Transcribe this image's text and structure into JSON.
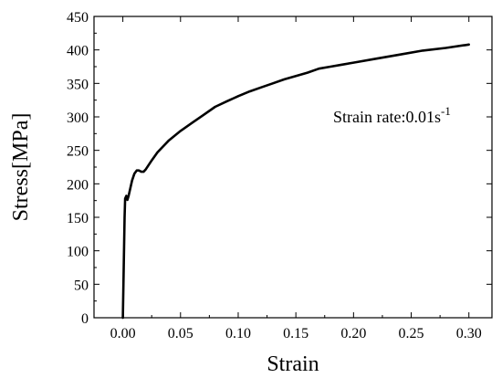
{
  "chart_data": {
    "type": "line",
    "title": "",
    "xlabel": "Strain",
    "ylabel": "Stress[MPa]",
    "xlim": [
      -0.025,
      0.32
    ],
    "ylim": [
      0,
      450
    ],
    "xticks": [
      0.0,
      0.05,
      0.1,
      0.15,
      0.2,
      0.25,
      0.3
    ],
    "xtick_labels": [
      "0.00",
      "0.05",
      "0.10",
      "0.15",
      "0.20",
      "0.25",
      "0.30"
    ],
    "yticks": [
      0,
      50,
      100,
      150,
      200,
      250,
      300,
      350,
      400,
      450
    ],
    "ytick_labels": [
      "0",
      "50",
      "100",
      "150",
      "200",
      "250",
      "300",
      "350",
      "400",
      "450"
    ],
    "grid": false,
    "legend": "none",
    "annotation": {
      "text": "Strain rate:0.01s",
      "superscript": "-1"
    },
    "series": [
      {
        "color": "#000000",
        "x": [
          0.0,
          0.0015,
          0.002,
          0.003,
          0.004,
          0.005,
          0.008,
          0.01,
          0.012,
          0.014,
          0.016,
          0.018,
          0.02,
          0.025,
          0.03,
          0.04,
          0.05,
          0.06,
          0.07,
          0.08,
          0.09,
          0.1,
          0.11,
          0.12,
          0.13,
          0.14,
          0.15,
          0.16,
          0.17,
          0.18,
          0.19,
          0.2,
          0.22,
          0.24,
          0.26,
          0.28,
          0.3
        ],
        "y": [
          0,
          150,
          178,
          182,
          176,
          182,
          205,
          215,
          220,
          220,
          218,
          218,
          222,
          235,
          247,
          265,
          279,
          291,
          303,
          315,
          323,
          331,
          338,
          344,
          350,
          356,
          361,
          366,
          372,
          375,
          378,
          381,
          387,
          393,
          399,
          403,
          408
        ]
      }
    ]
  }
}
